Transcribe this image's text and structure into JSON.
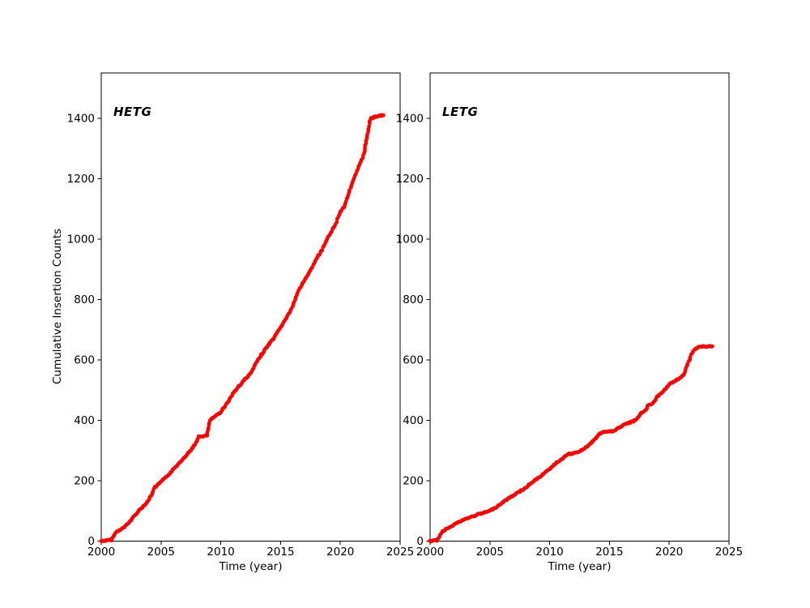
{
  "figure": {
    "background": "#ffffff",
    "axis_color": "#000000",
    "marker_color": "#ff0000"
  },
  "chart_data": [
    {
      "type": "scatter",
      "label": "HETG",
      "xlabel": "Time (year)",
      "ylabel": "Cumulative Insertion Counts",
      "xlim": [
        2000,
        2025
      ],
      "ylim": [
        0,
        1550
      ],
      "xticks": [
        2000,
        2005,
        2010,
        2015,
        2020,
        2025
      ],
      "yticks": [
        0,
        200,
        400,
        600,
        800,
        1000,
        1200,
        1400
      ],
      "grid": false,
      "legend": "none",
      "color": "#ff0000",
      "points": [
        [
          2000.0,
          0
        ],
        [
          2000.85,
          4
        ],
        [
          2001.2,
          28
        ],
        [
          2001.6,
          38
        ],
        [
          2002.0,
          48
        ],
        [
          2002.5,
          70
        ],
        [
          2003.0,
          95
        ],
        [
          2003.6,
          118
        ],
        [
          2004.0,
          138
        ],
        [
          2004.5,
          178
        ],
        [
          2005.0,
          196
        ],
        [
          2005.5,
          215
        ],
        [
          2006.0,
          235
        ],
        [
          2006.5,
          258
        ],
        [
          2007.0,
          280
        ],
        [
          2007.5,
          302
        ],
        [
          2008.0,
          330
        ],
        [
          2008.15,
          345
        ],
        [
          2008.85,
          350
        ],
        [
          2009.1,
          400
        ],
        [
          2009.5,
          412
        ],
        [
          2010.0,
          428
        ],
        [
          2010.5,
          455
        ],
        [
          2011.0,
          488
        ],
        [
          2011.5,
          512
        ],
        [
          2012.0,
          535
        ],
        [
          2012.5,
          555
        ],
        [
          2012.9,
          585
        ],
        [
          2013.3,
          612
        ],
        [
          2013.9,
          645
        ],
        [
          2014.5,
          675
        ],
        [
          2015.0,
          708
        ],
        [
          2015.5,
          740
        ],
        [
          2016.0,
          775
        ],
        [
          2016.5,
          830
        ],
        [
          2017.0,
          865
        ],
        [
          2017.5,
          895
        ],
        [
          2018.0,
          935
        ],
        [
          2018.5,
          965
        ],
        [
          2019.0,
          1008
        ],
        [
          2019.5,
          1042
        ],
        [
          2020.0,
          1090
        ],
        [
          2020.35,
          1110
        ],
        [
          2020.65,
          1148
        ],
        [
          2021.0,
          1185
        ],
        [
          2021.7,
          1255
        ],
        [
          2022.0,
          1285
        ],
        [
          2022.2,
          1334
        ],
        [
          2022.5,
          1398
        ],
        [
          2022.9,
          1405
        ],
        [
          2023.6,
          1410
        ]
      ]
    },
    {
      "type": "scatter",
      "label": "LETG",
      "xlabel": "Time (year)",
      "ylabel": "",
      "xlim": [
        2000,
        2025
      ],
      "ylim": [
        0,
        1550
      ],
      "xticks": [
        2000,
        2005,
        2010,
        2015,
        2020,
        2025
      ],
      "yticks": [
        0,
        200,
        400,
        600,
        800,
        1000,
        1200,
        1400
      ],
      "grid": false,
      "legend": "none",
      "color": "#ff0000",
      "points": [
        [
          2000.0,
          0
        ],
        [
          2000.6,
          3
        ],
        [
          2001.0,
          30
        ],
        [
          2001.5,
          44
        ],
        [
          2002.0,
          55
        ],
        [
          2002.5,
          65
        ],
        [
          2003.0,
          74
        ],
        [
          2003.5,
          81
        ],
        [
          2004.0,
          88
        ],
        [
          2004.5,
          94
        ],
        [
          2005.0,
          100
        ],
        [
          2005.5,
          112
        ],
        [
          2006.0,
          126
        ],
        [
          2006.5,
          140
        ],
        [
          2007.0,
          152
        ],
        [
          2007.5,
          165
        ],
        [
          2008.0,
          176
        ],
        [
          2008.5,
          195
        ],
        [
          2009.0,
          208
        ],
        [
          2009.5,
          222
        ],
        [
          2010.0,
          240
        ],
        [
          2010.35,
          252
        ],
        [
          2011.0,
          272
        ],
        [
          2011.5,
          287
        ],
        [
          2012.3,
          293
        ],
        [
          2012.7,
          302
        ],
        [
          2013.1,
          312
        ],
        [
          2013.6,
          330
        ],
        [
          2014.1,
          352
        ],
        [
          2014.4,
          360
        ],
        [
          2015.3,
          364
        ],
        [
          2015.9,
          378
        ],
        [
          2016.4,
          388
        ],
        [
          2017.0,
          397
        ],
        [
          2017.35,
          407
        ],
        [
          2017.65,
          425
        ],
        [
          2018.05,
          433
        ],
        [
          2018.2,
          448
        ],
        [
          2018.6,
          456
        ],
        [
          2019.0,
          478
        ],
        [
          2019.5,
          496
        ],
        [
          2020.0,
          518
        ],
        [
          2020.6,
          533
        ],
        [
          2021.05,
          542
        ],
        [
          2021.25,
          557
        ],
        [
          2021.55,
          587
        ],
        [
          2021.85,
          617
        ],
        [
          2022.1,
          632
        ],
        [
          2022.4,
          642
        ],
        [
          2022.8,
          644
        ],
        [
          2023.6,
          645
        ]
      ]
    }
  ]
}
